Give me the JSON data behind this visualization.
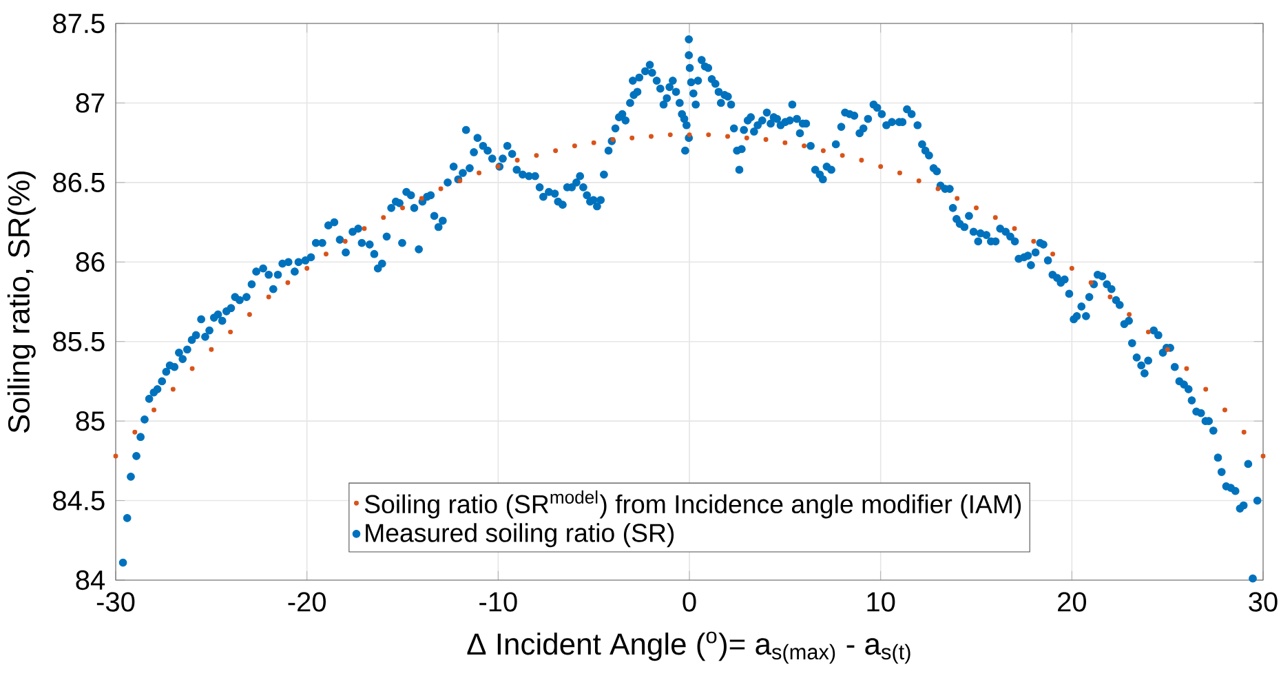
{
  "chart_data": {
    "type": "scatter",
    "xlabel": "Δ Incident Angle ($^{o}$)= a$_{s(max)}$ - a$_{s(t)}$",
    "ylabel": "Soiling ratio, SR(%)",
    "xlim": [
      -30,
      30
    ],
    "ylim": [
      84,
      87.5
    ],
    "xticks": [
      -30,
      -20,
      -10,
      0,
      10,
      20,
      30
    ],
    "yticks": [
      84,
      84.5,
      85,
      85.5,
      86,
      86.5,
      87,
      87.5
    ],
    "grid": true,
    "legend": "bottom",
    "marker": "circle",
    "series": [
      {
        "name": "Soiling ratio (SR$^{model}$) from Incidence angle modifier (IAM)",
        "color": "#d95319",
        "x": [
          -30,
          -29,
          -28,
          -27,
          -26,
          -25,
          -24,
          -23,
          -22,
          -21,
          -20,
          -19,
          -18,
          -17,
          -16,
          -15,
          -14,
          -13,
          -12,
          -11,
          -10,
          -9,
          -8,
          -7,
          -6,
          -5,
          -4,
          -3,
          -2,
          -1,
          0,
          1,
          2,
          3,
          4,
          5,
          6,
          7,
          8,
          9,
          10,
          11,
          12,
          13,
          14,
          15,
          16,
          17,
          18,
          19,
          20,
          21,
          22,
          23,
          24,
          25,
          26,
          27,
          28,
          29,
          30
        ],
        "values": [
          84.78,
          84.93,
          85.07,
          85.2,
          85.33,
          85.45,
          85.56,
          85.67,
          85.78,
          85.87,
          85.96,
          86.05,
          86.13,
          86.21,
          86.28,
          86.34,
          86.4,
          86.46,
          86.51,
          86.56,
          86.6,
          86.64,
          86.67,
          86.7,
          86.73,
          86.75,
          86.77,
          86.78,
          86.79,
          86.8,
          86.8,
          86.8,
          86.79,
          86.78,
          86.77,
          86.75,
          86.73,
          86.7,
          86.67,
          86.64,
          86.6,
          86.56,
          86.51,
          86.46,
          86.4,
          86.34,
          86.28,
          86.21,
          86.13,
          86.05,
          85.96,
          85.87,
          85.78,
          85.67,
          85.56,
          85.45,
          85.33,
          85.2,
          85.07,
          84.93,
          84.78
        ]
      },
      {
        "name": "Measured soiling ratio (SR)",
        "color": "#0072bd",
        "x": [
          -29.62,
          -29.4,
          -29.21,
          -28.92,
          -28.7,
          -28.49,
          -28.25,
          -28.01,
          -27.82,
          -27.58,
          -27.36,
          -27.17,
          -26.93,
          -26.69,
          -26.5,
          -26.26,
          -26.02,
          -25.8,
          -25.53,
          -25.32,
          -25.1,
          -24.86,
          -24.65,
          -24.43,
          -24.21,
          -23.97,
          -23.76,
          -23.52,
          -23.16,
          -22.89,
          -22.65,
          -22.29,
          -22.0,
          -21.76,
          -21.52,
          -21.28,
          -20.97,
          -20.64,
          -20.44,
          -20.08,
          -19.79,
          -19.53,
          -19.2,
          -18.88,
          -18.57,
          -18.28,
          -17.97,
          -17.61,
          -17.32,
          -17.13,
          -16.72,
          -16.48,
          -16.29,
          -16.07,
          -15.83,
          -15.59,
          -15.35,
          -15.16,
          -15.02,
          -14.8,
          -14.56,
          -14.39,
          -14.15,
          -13.96,
          -13.72,
          -13.53,
          -13.34,
          -13.12,
          -12.9,
          -12.64,
          -12.33,
          -12.09,
          -11.85,
          -11.68,
          -11.49,
          -11.27,
          -11.08,
          -10.79,
          -10.55,
          -10.31,
          -9.93,
          -9.76,
          -9.52,
          -9.27,
          -9.03,
          -8.72,
          -8.39,
          -8.07,
          -7.83,
          -7.64,
          -7.35,
          -7.04,
          -6.87,
          -6.63,
          -6.39,
          -6.15,
          -5.91,
          -5.72,
          -5.55,
          -5.36,
          -5.19,
          -5.02,
          -4.83,
          -4.64,
          -4.47,
          -4.23,
          -4.06,
          -3.87,
          -3.68,
          -3.51,
          -3.34,
          -3.1,
          -2.91,
          -2.72,
          -2.96,
          -2.62,
          -2.31,
          -2.07,
          -1.95,
          -1.71,
          -1.52,
          -1.35,
          -1.18,
          -1.04,
          -0.87,
          -0.7,
          -0.51,
          -0.39,
          -0.27,
          -0.15,
          -0.03,
          -0.03,
          0.02,
          -0.03,
          -0.22,
          0.09,
          0.21,
          0.33,
          0.45,
          0.64,
          0.81,
          0.98,
          1.17,
          1.36,
          1.53,
          1.65,
          1.84,
          2.01,
          2.18,
          2.33,
          2.49,
          2.61,
          2.73,
          2.85,
          3.05,
          3.21,
          3.38,
          3.57,
          3.81,
          4.05,
          4.25,
          4.41,
          4.58,
          4.77,
          5.01,
          5.25,
          5.38,
          5.62,
          5.78,
          5.93,
          6.1,
          6.34,
          6.58,
          6.82,
          6.98,
          7.18,
          7.42,
          7.66,
          7.94,
          8.14,
          8.38,
          8.62,
          8.9,
          9.1,
          9.34,
          9.63,
          9.82,
          10.06,
          10.3,
          10.59,
          10.97,
          11.14,
          11.38,
          11.62,
          11.93,
          12.17,
          12.34,
          12.53,
          12.77,
          12.94,
          13.13,
          13.37,
          13.61,
          13.78,
          13.97,
          14.14,
          14.38,
          14.62,
          14.86,
          15.1,
          15.22,
          15.53,
          15.77,
          16.01,
          16.25,
          16.54,
          16.78,
          17.02,
          17.22,
          17.5,
          17.7,
          17.86,
          18.1,
          18.34,
          18.51,
          18.75,
          18.99,
          19.23,
          19.42,
          19.62,
          19.86,
          20.1,
          20.26,
          20.5,
          20.74,
          20.91,
          21.15,
          21.35,
          21.59,
          21.83,
          22.07,
          22.31,
          22.5,
          22.74,
          22.98,
          23.15,
          23.39,
          23.63,
          23.8,
          23.99,
          24.28,
          24.52,
          24.76,
          24.95,
          25.14,
          25.38,
          25.62,
          25.86,
          26.1,
          26.27,
          26.51,
          26.75,
          26.99,
          27.16,
          27.4,
          27.64,
          27.83,
          28.07,
          28.31,
          28.55,
          28.79,
          28.98,
          29.22,
          29.7,
          29.46
        ],
        "values": [
          84.11,
          84.39,
          84.65,
          84.78,
          84.9,
          85.01,
          85.14,
          85.18,
          85.2,
          85.25,
          85.31,
          85.35,
          85.34,
          85.43,
          85.39,
          85.45,
          85.51,
          85.54,
          85.64,
          85.53,
          85.57,
          85.65,
          85.67,
          85.63,
          85.69,
          85.71,
          85.78,
          85.76,
          85.78,
          85.86,
          85.94,
          85.96,
          85.92,
          85.83,
          85.92,
          85.99,
          86.0,
          85.94,
          86.0,
          86.01,
          86.03,
          86.12,
          86.12,
          86.23,
          86.25,
          86.14,
          86.06,
          86.19,
          86.21,
          86.12,
          86.11,
          86.05,
          85.96,
          85.99,
          86.16,
          86.34,
          86.38,
          86.37,
          86.12,
          86.44,
          86.42,
          86.34,
          86.08,
          86.38,
          86.41,
          86.42,
          86.29,
          86.22,
          86.26,
          86.5,
          86.6,
          86.52,
          86.56,
          86.83,
          86.59,
          86.69,
          86.78,
          86.73,
          86.7,
          86.65,
          86.6,
          86.65,
          86.73,
          86.68,
          86.58,
          86.55,
          86.54,
          86.54,
          86.47,
          86.41,
          86.44,
          86.43,
          86.38,
          86.36,
          86.47,
          86.47,
          86.5,
          86.54,
          86.47,
          86.42,
          86.38,
          86.39,
          86.35,
          86.39,
          86.55,
          86.7,
          86.76,
          86.84,
          86.91,
          86.93,
          86.89,
          87.0,
          87.05,
          87.07,
          87.14,
          87.16,
          87.2,
          87.24,
          87.19,
          87.14,
          87.09,
          86.99,
          87.03,
          87.1,
          87.14,
          87.07,
          87.0,
          86.93,
          86.9,
          86.86,
          87.4,
          87.3,
          87.22,
          86.78,
          86.7,
          87.13,
          87.06,
          86.99,
          87.14,
          87.27,
          87.23,
          87.22,
          87.15,
          87.12,
          87.07,
          87.0,
          87.05,
          87.04,
          86.99,
          86.84,
          86.7,
          86.58,
          86.71,
          86.83,
          86.89,
          86.91,
          86.82,
          86.86,
          86.89,
          86.94,
          86.87,
          86.91,
          86.9,
          86.86,
          86.88,
          86.89,
          86.99,
          86.9,
          86.81,
          86.87,
          86.87,
          86.73,
          86.58,
          86.55,
          86.52,
          86.6,
          86.58,
          86.74,
          86.85,
          86.94,
          86.93,
          86.92,
          86.81,
          86.84,
          86.9,
          86.99,
          86.97,
          86.93,
          86.86,
          86.88,
          86.88,
          86.88,
          86.96,
          86.93,
          86.86,
          86.74,
          86.7,
          86.67,
          86.59,
          86.57,
          86.48,
          86.46,
          86.46,
          86.34,
          86.27,
          86.24,
          86.22,
          86.29,
          86.19,
          86.13,
          86.18,
          86.17,
          86.13,
          86.13,
          86.21,
          86.19,
          86.16,
          86.13,
          86.02,
          86.03,
          86.04,
          85.98,
          86.06,
          86.12,
          86.11,
          86.01,
          85.92,
          85.9,
          85.87,
          85.89,
          85.8,
          85.64,
          85.66,
          85.72,
          85.66,
          85.78,
          85.86,
          85.92,
          85.91,
          85.86,
          85.83,
          85.76,
          85.73,
          85.61,
          85.63,
          85.49,
          85.4,
          85.35,
          85.3,
          85.38,
          85.57,
          85.54,
          85.43,
          85.46,
          85.46,
          85.34,
          85.25,
          85.23,
          85.2,
          85.13,
          85.06,
          85.05,
          85.0,
          85.0,
          84.94,
          84.77,
          84.68,
          84.59,
          84.58,
          84.56,
          84.45,
          84.47,
          84.73,
          84.5,
          84.01
        ]
      }
    ]
  }
}
